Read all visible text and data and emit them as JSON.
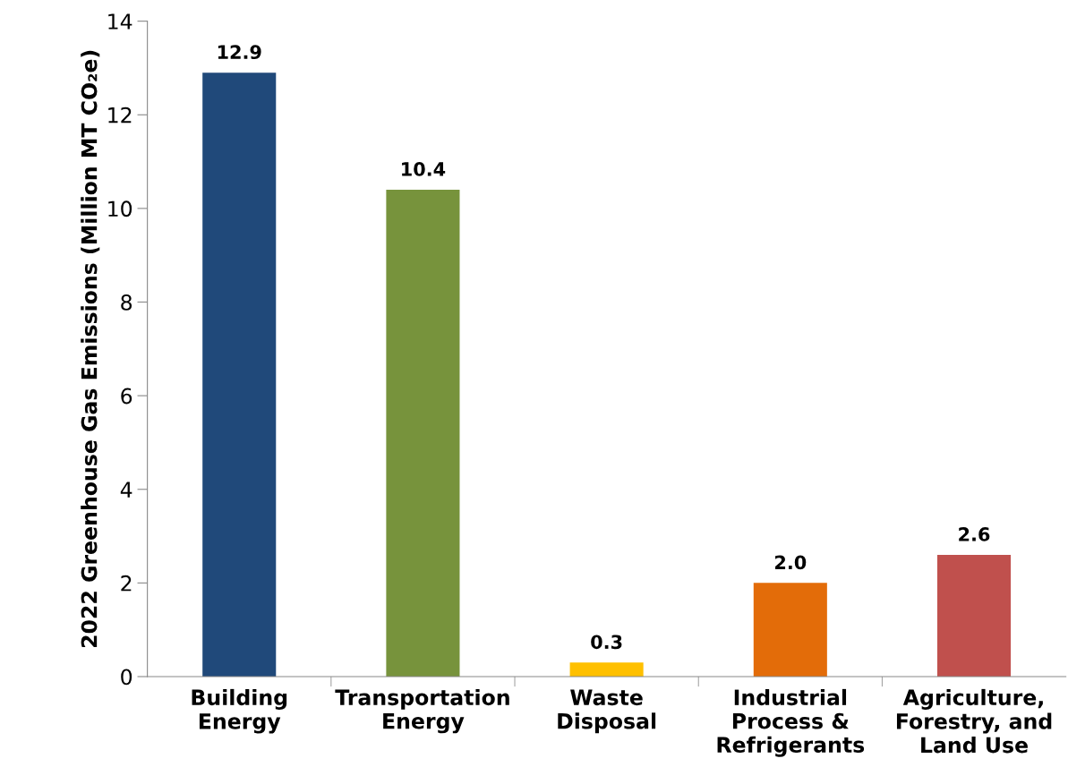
{
  "chart_data": {
    "type": "bar",
    "ylabel": "2022 Greenhouse Gas Emissions (Million MT CO₂e)",
    "categories": [
      "Building\nEnergy",
      "Transportation\nEnergy",
      "Waste\nDisposal",
      "Industrial\nProcess &\nRefrigerants",
      "Agriculture,\nForestry, and\nLand Use"
    ],
    "values": [
      12.9,
      10.4,
      0.3,
      2.0,
      2.6
    ],
    "value_labels": [
      "12.9",
      "10.4",
      "0.3",
      "2.0",
      "2.6"
    ],
    "colors": [
      "#20497a",
      "#77933c",
      "#ffc000",
      "#e36c09",
      "#c0504d"
    ],
    "ylim": [
      0,
      14
    ],
    "yticks": [
      0,
      2,
      4,
      6,
      8,
      10,
      12,
      14
    ],
    "grid": false,
    "legend": false
  }
}
